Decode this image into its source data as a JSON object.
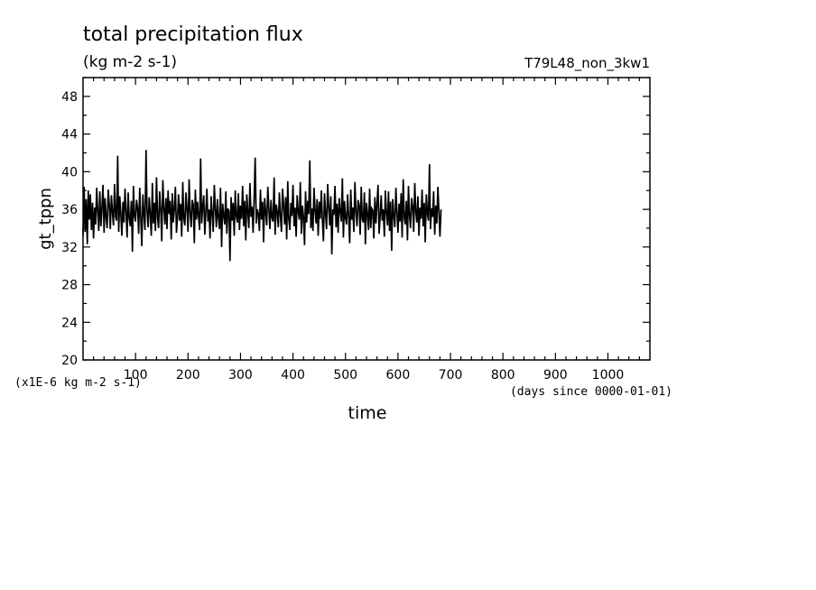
{
  "chart_data": {
    "type": "line",
    "title": "total precipitation flux",
    "subtitle": "(kg m-2 s-1)",
    "run_label": "T79L48_non_3kw1",
    "ylabel": "gt_tppn",
    "xlabel": "time",
    "y_multiplier_note": "(x1E-6 kg m-2 s-1)",
    "x_units_note": "(days since 0000-01-01)",
    "xlim": [
      0,
      1080
    ],
    "ylim": [
      20,
      50
    ],
    "x_ticks": [
      100,
      200,
      300,
      400,
      500,
      600,
      700,
      800,
      900,
      1000
    ],
    "y_ticks": [
      20,
      24,
      28,
      32,
      36,
      40,
      44,
      48
    ],
    "grid": false,
    "series": [
      {
        "x_start": 0,
        "x_step": 2,
        "values": [
          33.2,
          38.4,
          33.6,
          37.1,
          32.3,
          38.0,
          34.9,
          37.6,
          33.8,
          36.7,
          32.9,
          36.2,
          34.4,
          38.3,
          35.8,
          33.7,
          37.9,
          34.2,
          36.0,
          38.6,
          33.5,
          37.2,
          35.1,
          34.0,
          38.1,
          36.4,
          33.9,
          37.5,
          35.6,
          34.3,
          38.7,
          35.2,
          34.8,
          41.7,
          33.6,
          37.4,
          35.5,
          33.2,
          36.8,
          34.6,
          38.2,
          35.7,
          33.0,
          37.8,
          35.0,
          34.2,
          36.9,
          31.5,
          38.5,
          35.3,
          34.7,
          37.0,
          36.1,
          33.4,
          38.3,
          34.9,
          32.1,
          37.6,
          35.4,
          33.8,
          42.3,
          35.9,
          34.1,
          37.3,
          35.6,
          33.2,
          38.8,
          34.5,
          36.7,
          33.7,
          39.4,
          35.1,
          34.0,
          37.9,
          35.8,
          32.6,
          39.1,
          36.3,
          34.4,
          37.2,
          33.9,
          38.0,
          35.5,
          36.9,
          32.8,
          37.7,
          34.6,
          36.1,
          38.4,
          33.5,
          35.2,
          37.6,
          34.8,
          36.6,
          33.1,
          38.9,
          35.0,
          34.3,
          37.8,
          36.2,
          33.6,
          39.2,
          35.7,
          34.1,
          37.0,
          36.5,
          32.4,
          38.1,
          34.9,
          36.8,
          35.3,
          33.8,
          41.4,
          34.5,
          36.3,
          37.5,
          33.3,
          35.9,
          38.2,
          34.7,
          36.0,
          32.9,
          37.4,
          35.6,
          33.6,
          38.6,
          36.2,
          34.1,
          37.1,
          35.1,
          33.9,
          38.3,
          32.0,
          36.6,
          35.4,
          34.4,
          37.9,
          33.4,
          36.1,
          35.8,
          30.5,
          37.3,
          34.8,
          36.7,
          33.2,
          38.0,
          35.3,
          34.6,
          37.7,
          33.8,
          36.4,
          35.0,
          38.5,
          34.2,
          36.9,
          32.7,
          37.6,
          35.7,
          34.0,
          38.8,
          35.2,
          36.3,
          33.5,
          37.4,
          41.5,
          34.5,
          36.0,
          35.5,
          33.7,
          38.1,
          34.9,
          36.8,
          32.5,
          37.2,
          35.6,
          34.3,
          38.4,
          36.1,
          33.9,
          37.0,
          35.1,
          34.7,
          39.4,
          33.3,
          36.5,
          35.8,
          34.1,
          37.8,
          35.4,
          33.6,
          38.2,
          36.6,
          34.4,
          37.3,
          32.8,
          39.0,
          35.0,
          33.8,
          36.7,
          35.3,
          38.6,
          34.2,
          36.2,
          33.1,
          37.5,
          35.7,
          34.9,
          38.9,
          33.4,
          36.4,
          35.2,
          32.2,
          37.9,
          34.6,
          36.9,
          35.5,
          41.2,
          34.0,
          36.1,
          33.7,
          38.3,
          35.9,
          34.5,
          37.1,
          33.2,
          36.8,
          35.0,
          38.0,
          34.8,
          32.6,
          37.7,
          35.6,
          33.9,
          38.7,
          36.3,
          34.3,
          37.4,
          31.2,
          36.0,
          35.4,
          38.5,
          34.1,
          36.6,
          33.5,
          37.2,
          35.8,
          34.7,
          39.3,
          33.0,
          36.9,
          35.1,
          34.4,
          37.6,
          35.3,
          32.4,
          38.1,
          34.9,
          36.2,
          33.6,
          38.9,
          35.7,
          34.2,
          37.0,
          36.4,
          33.3,
          38.4,
          35.0,
          34.6,
          37.8,
          32.3,
          36.7,
          35.5,
          33.8,
          38.2,
          34.0,
          36.1,
          35.9,
          32.9,
          37.3,
          34.5,
          36.5,
          38.6,
          33.4,
          35.2,
          37.5,
          34.8,
          36.0,
          33.1,
          38.0,
          35.6,
          34.3,
          37.9,
          33.7,
          36.8,
          31.6,
          37.1,
          35.4,
          34.1,
          38.3,
          35.8,
          33.5,
          36.6,
          34.7,
          37.7,
          33.0,
          39.2,
          35.1,
          34.4,
          36.9,
          32.7,
          38.5,
          35.3,
          34.0,
          37.2,
          36.3,
          33.6,
          38.8,
          35.7,
          34.6,
          37.4,
          33.2,
          36.2,
          35.0,
          38.1,
          34.2,
          36.7,
          32.5,
          37.6,
          35.5,
          34.8,
          40.8,
          33.9,
          36.1,
          35.2,
          37.9,
          33.3,
          36.4,
          34.5,
          38.4,
          35.9,
          33.1,
          36.0
        ]
      }
    ]
  }
}
